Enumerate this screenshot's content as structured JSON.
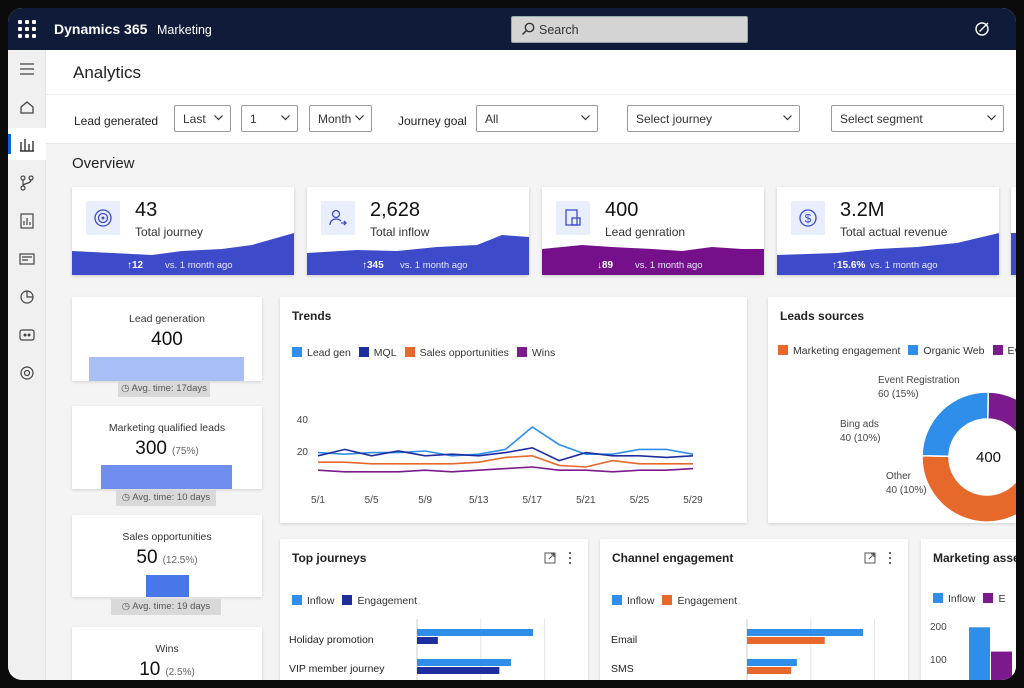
{
  "app": {
    "brand": "Dynamics 365",
    "module": "Marketing",
    "search_placeholder": "Search"
  },
  "page": {
    "title": "Analytics",
    "overview": "Overview"
  },
  "filters": {
    "lead_generated_label": "Lead generated",
    "period": "Last",
    "count": "1",
    "unit": "Month",
    "journey_goal_label": "Journey goal",
    "journey_goal": "All",
    "journey_placeholder": "Select journey",
    "segment_placeholder": "Select segment"
  },
  "kpis": [
    {
      "value": "43",
      "label": "Total journey",
      "delta": "↑12",
      "compare": "vs. 1 month ago",
      "color": "#3d4ac9",
      "icon": "target-icon"
    },
    {
      "value": "2,628",
      "label": "Total inflow",
      "delta": "↑345",
      "compare": "vs. 1 month ago",
      "color": "#3d4ac9",
      "icon": "user-arrow-icon"
    },
    {
      "value": "400",
      "label": "Lead genration",
      "delta": "↓89",
      "compare": "vs. 1 month ago",
      "color": "#75108a",
      "icon": "lead-form-icon"
    },
    {
      "value": "3.2M",
      "label": "Total actual revenue",
      "delta": "↑15.6%",
      "compare": "vs. 1 month ago",
      "color": "#3d4ac9",
      "icon": "dollar-icon"
    }
  ],
  "funnel": [
    {
      "title": "Lead generation",
      "value": "400",
      "pct": "",
      "avg": "Avg. time: 17days"
    },
    {
      "title": "Marketing qualified leads",
      "value": "300",
      "pct": "(75%)",
      "avg": "Avg. time: 10 days"
    },
    {
      "title": "Sales opportunities",
      "value": "50",
      "pct": "(12.5%)",
      "avg": "Avg. time: 19 days"
    },
    {
      "title": "Wins",
      "value": "10",
      "pct": "(2.5%)",
      "avg": ""
    }
  ],
  "trends": {
    "title": "Trends",
    "chart_data": {
      "type": "line",
      "x": [
        "5/1",
        "5/3",
        "5/5",
        "5/7",
        "5/9",
        "5/11",
        "5/13",
        "5/15",
        "5/17",
        "5/19",
        "5/21",
        "5/23",
        "5/25",
        "5/27",
        "5/29"
      ],
      "x_ticks": [
        "5/1",
        "5/5",
        "5/9",
        "5/13",
        "5/17",
        "5/21",
        "5/25",
        "5/29"
      ],
      "y_ticks": [
        20,
        40
      ],
      "ylim": [
        0,
        50
      ],
      "series": [
        {
          "name": "Lead gen",
          "color": "#2f8eea",
          "values": [
            19,
            18,
            19,
            19,
            20,
            17,
            18,
            21,
            35,
            24,
            18,
            18,
            21,
            21,
            18
          ]
        },
        {
          "name": "MQL",
          "color": "#1e2e9e",
          "values": [
            17,
            21,
            17,
            20,
            17,
            18,
            17,
            19,
            22,
            14,
            19,
            17,
            17,
            16,
            17
          ]
        },
        {
          "name": "Sales opportunities",
          "color": "#e6682a",
          "values": [
            13,
            13,
            12,
            12,
            12,
            12,
            13,
            16,
            17,
            11,
            10,
            14,
            12,
            12,
            12
          ]
        },
        {
          "name": "Wins",
          "color": "#7a1a8c",
          "values": [
            8,
            7,
            7,
            7,
            8,
            7,
            8,
            9,
            10,
            8,
            8,
            7,
            8,
            8,
            9
          ]
        }
      ]
    }
  },
  "leads_sources": {
    "title": "Leads sources",
    "legend": [
      "Marketing engagement",
      "Organic Web",
      "Ev"
    ],
    "legend_colors": [
      "#e6682a",
      "#2f8eea",
      "#7a1a8c"
    ],
    "center": "400",
    "labels": [
      {
        "name": "Event Registration",
        "value": "60 (15%)"
      },
      {
        "name": "Bing ads",
        "value": "40 (10%)"
      },
      {
        "name": "Other",
        "value": "40 (10%)"
      }
    ],
    "chart_data": {
      "type": "pie",
      "slices": [
        {
          "label": "Event Registration",
          "value": 60,
          "color": "#7a1a8c"
        },
        {
          "label": "Bing ads",
          "value": 40,
          "color": "#e33bb5"
        },
        {
          "label": "Other",
          "value": 40,
          "color": "#1e2e9e"
        },
        {
          "label": "Marketing engagement",
          "value": 160,
          "color": "#e6682a"
        },
        {
          "label": "Organic Web",
          "value": 100,
          "color": "#2f8eea"
        }
      ]
    }
  },
  "top_journeys": {
    "title": "Top journeys",
    "legend": [
      "Inflow",
      "Engagement"
    ],
    "rows": [
      "Holiday promotion",
      "VIP member journey"
    ],
    "chart_data": {
      "type": "bar",
      "categories": [
        "Holiday promotion",
        "VIP member journey"
      ],
      "series": [
        {
          "name": "Inflow",
          "color": "#2f8eea",
          "values": [
            100,
            81
          ]
        },
        {
          "name": "Engagement",
          "color": "#1e2e9e",
          "values": [
            18,
            71
          ]
        }
      ]
    }
  },
  "channel": {
    "title": "Channel engagement",
    "legend": [
      "Inflow",
      "Engagement"
    ],
    "rows": [
      "Email",
      "SMS"
    ],
    "chart_data": {
      "type": "bar",
      "categories": [
        "Email",
        "SMS"
      ],
      "series": [
        {
          "name": "Inflow",
          "color": "#2f8eea",
          "values": [
            100,
            43
          ]
        },
        {
          "name": "Engagement",
          "color": "#e6682a",
          "values": [
            67,
            38
          ]
        }
      ]
    }
  },
  "marketing_assets": {
    "title": "Marketing asse",
    "legend": [
      "Inflow",
      "E"
    ],
    "y_ticks": [
      "200",
      "100"
    ],
    "chart_data": {
      "type": "bar",
      "series": [
        {
          "name": "Inflow",
          "color": "#2f8eea",
          "values": [
            210
          ]
        },
        {
          "name": "E",
          "color": "#7a1a8c",
          "values": [
            120
          ]
        }
      ]
    }
  }
}
